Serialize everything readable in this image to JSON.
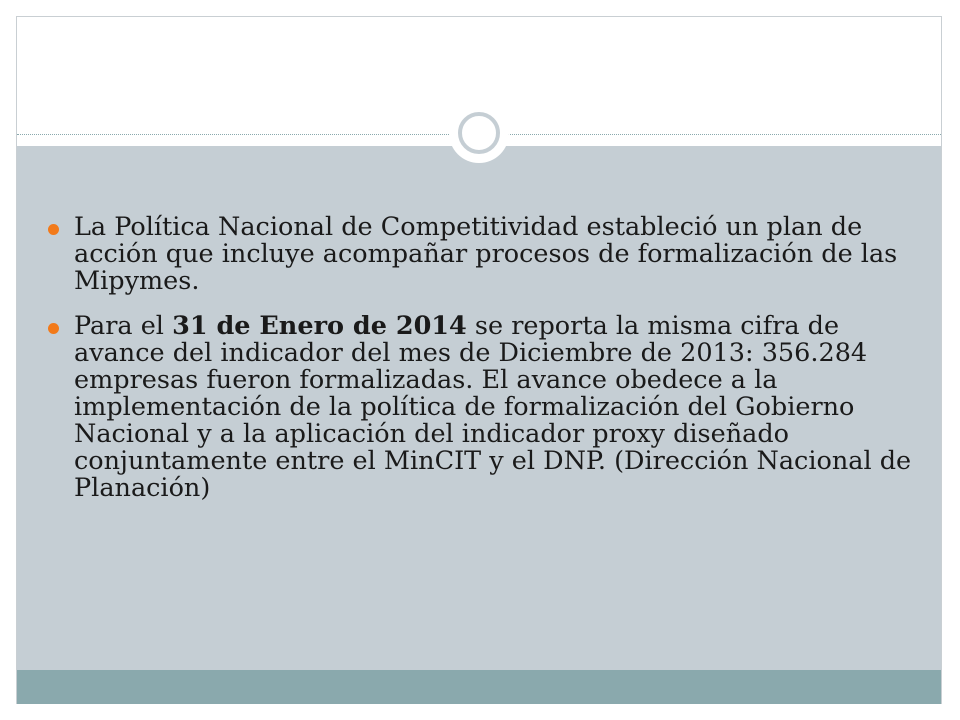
{
  "slide": {
    "bullet_color": "#f27a1a",
    "accent_color": "#8aa9ad",
    "content_bg_color": "#c5ced4",
    "bullets": [
      {
        "text": "La Política Nacional de Competitividad estableció un plan de acción que incluye acompañar procesos de formalización de las Mipymes."
      },
      {
        "text_before": "Para el ",
        "text_bold": "31 de Enero de 2014",
        "text_after": " se reporta la misma cifra de avance del indicador del mes de Diciembre de 2013: 356.284 empresas fueron formalizadas. El avance obedece a la implementación de la política de formalización del Gobierno Nacional y a la aplicación del indicador proxy diseñado conjuntamente entre el MinCIT y el DNP. (Dirección Nacional de Planación)"
      }
    ]
  }
}
